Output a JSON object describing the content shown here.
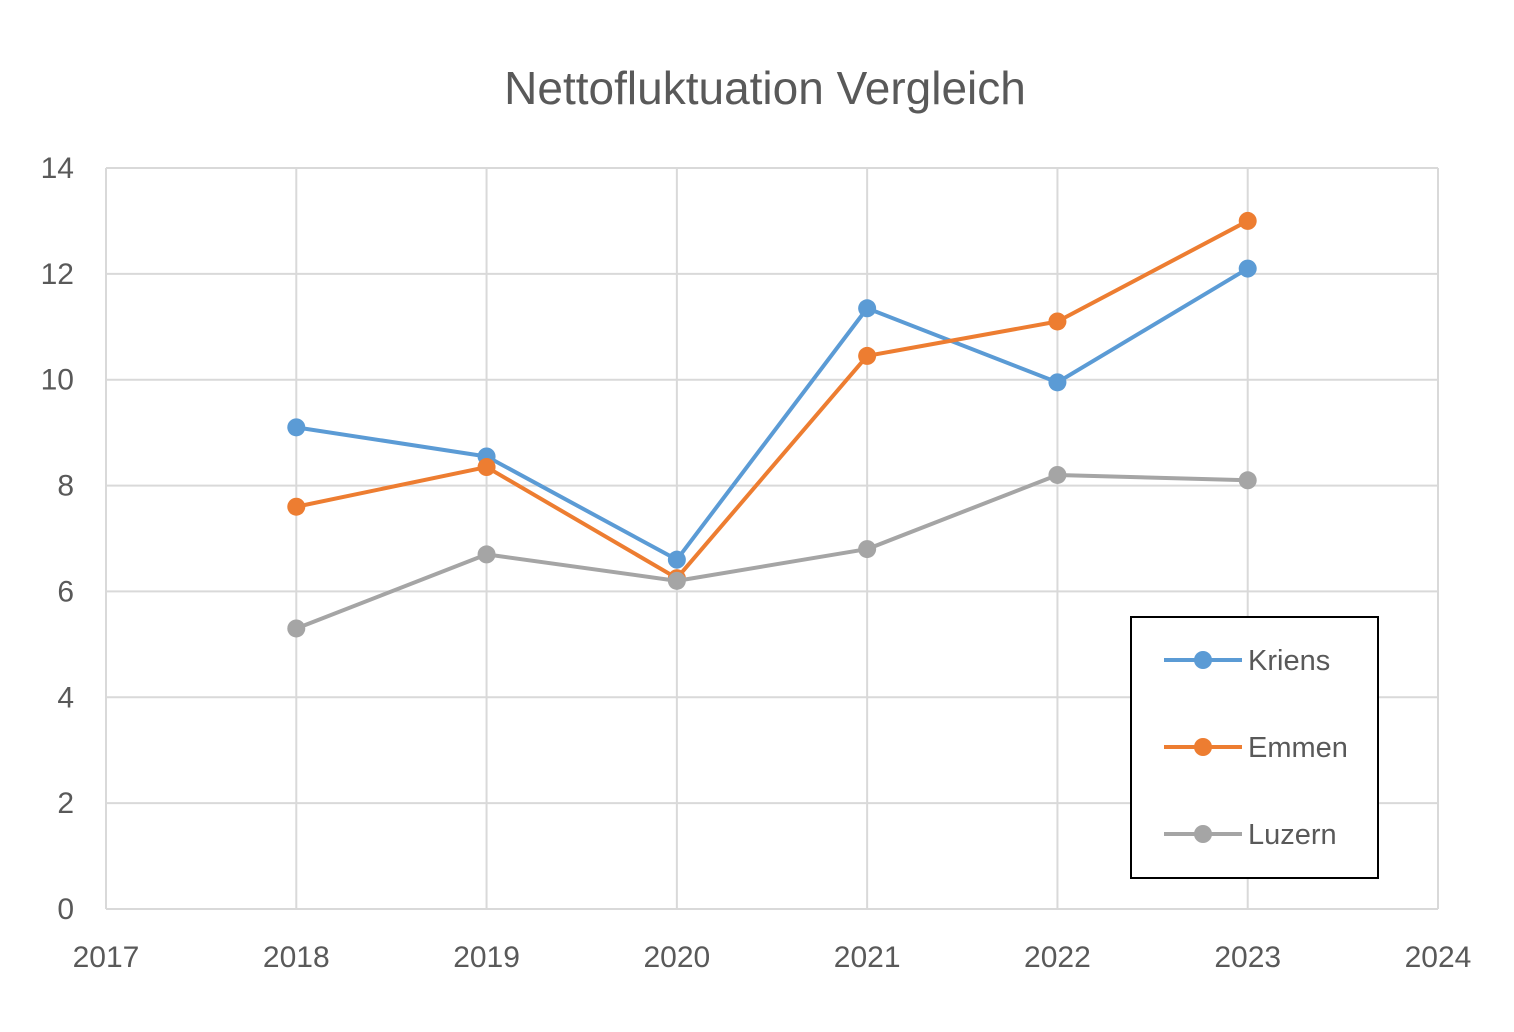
{
  "chart_data": {
    "type": "scatter",
    "title": "Nettofluktuation Vergleich",
    "xlabel": "",
    "ylabel": "",
    "xlim": [
      2017,
      2024
    ],
    "ylim": [
      0,
      14
    ],
    "xticks": [
      2017,
      2018,
      2019,
      2020,
      2021,
      2022,
      2023,
      2024
    ],
    "yticks": [
      0,
      2,
      4,
      6,
      8,
      10,
      12,
      14
    ],
    "grid": true,
    "legend_position": "bottom-right",
    "x": [
      2018,
      2019,
      2020,
      2021,
      2022,
      2023
    ],
    "series": [
      {
        "name": "Kriens",
        "color": "#5b9bd5",
        "values": [
          9.1,
          8.55,
          6.6,
          11.35,
          9.95,
          12.1
        ]
      },
      {
        "name": "Emmen",
        "color": "#ed7d31",
        "values": [
          7.6,
          8.35,
          6.25,
          10.45,
          11.1,
          13.0
        ]
      },
      {
        "name": "Luzern",
        "color": "#a5a5a5",
        "values": [
          5.3,
          6.7,
          6.2,
          6.8,
          8.2,
          8.1
        ]
      }
    ]
  }
}
